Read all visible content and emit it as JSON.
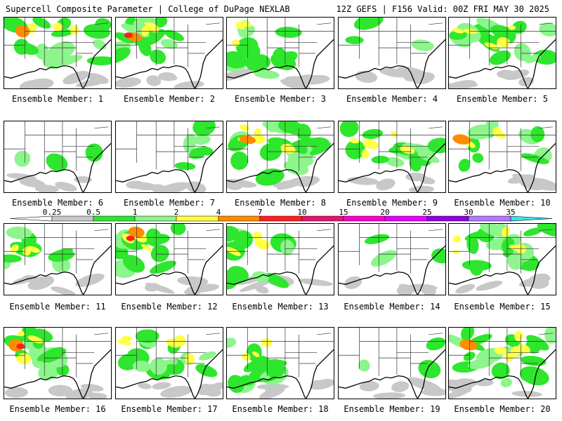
{
  "header": {
    "left": "Supercell Composite Parameter | College of DuPage NEXLAB",
    "right": "12Z GEFS | F156 Valid: 00Z FRI MAY 30 2025"
  },
  "legend": {
    "ticks": [
      "0.25",
      "0.5",
      "1",
      "2",
      "4",
      "7",
      "10",
      "15",
      "20",
      "25",
      "30",
      "35"
    ],
    "colors": [
      "#c8c8c8",
      "#2ee62e",
      "#8cf58c",
      "#ffff46",
      "#ff8c00",
      "#ff1e1e",
      "#e6146e",
      "#ff00c8",
      "#e600ff",
      "#8c00e6",
      "#b478ff",
      "#32e6f0"
    ]
  },
  "panels": [
    {
      "label": "Ensemble Member: 1",
      "cover": "heavy-north"
    },
    {
      "label": "Ensemble Member: 2",
      "cover": "west-hot"
    },
    {
      "label": "Ensemble Member: 3",
      "cover": "west-gulf"
    },
    {
      "label": "Ensemble Member: 4",
      "cover": "sparse"
    },
    {
      "label": "Ensemble Member: 5",
      "cover": "broad"
    },
    {
      "label": "Ensemble Member: 6",
      "cover": "sparse"
    },
    {
      "label": "Ensemble Member: 7",
      "cover": "east"
    },
    {
      "label": "Ensemble Member: 8",
      "cover": "broad-gulf"
    },
    {
      "label": "Ensemble Member: 9",
      "cover": "broad"
    },
    {
      "label": "Ensemble Member: 10",
      "cover": "north"
    },
    {
      "label": "Ensemble Member: 11",
      "cover": "west"
    },
    {
      "label": "Ensemble Member: 12",
      "cover": "west-hot"
    },
    {
      "label": "Ensemble Member: 13",
      "cover": "west-gulf"
    },
    {
      "label": "Ensemble Member: 14",
      "cover": "sparse"
    },
    {
      "label": "Ensemble Member: 15",
      "cover": "broad"
    },
    {
      "label": "Ensemble Member: 16",
      "cover": "west-hot"
    },
    {
      "label": "Ensemble Member: 17",
      "cover": "broad"
    },
    {
      "label": "Ensemble Member: 18",
      "cover": "west-gulf"
    },
    {
      "label": "Ensemble Member: 19",
      "cover": "sparse"
    },
    {
      "label": "Ensemble Member: 20",
      "cover": "broad-gulf"
    }
  ]
}
